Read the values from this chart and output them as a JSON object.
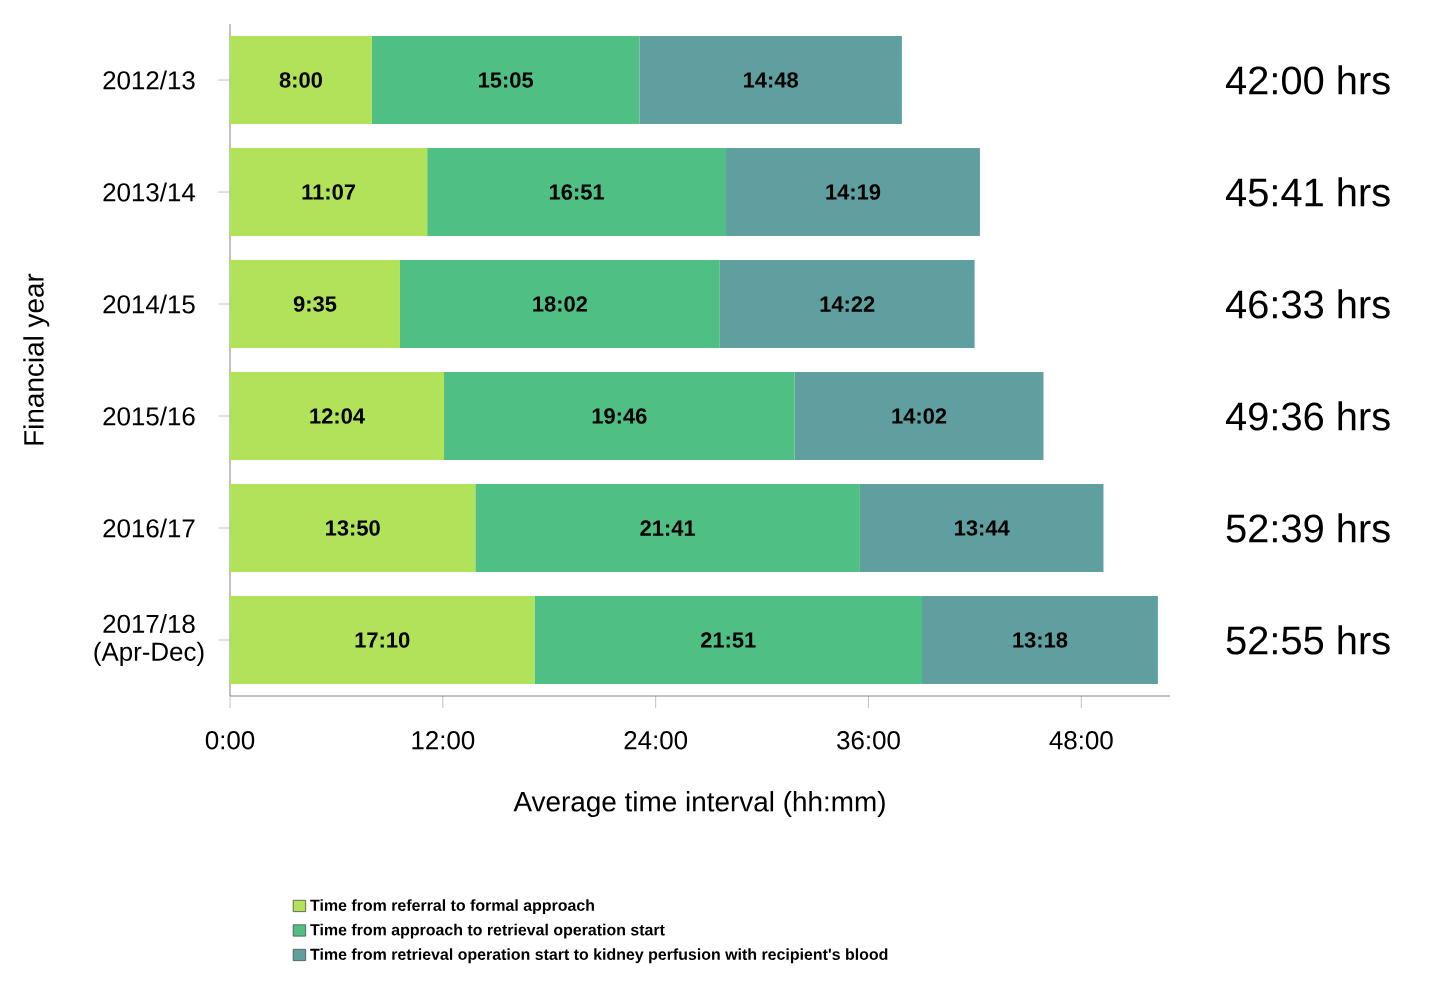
{
  "chart_data": {
    "type": "bar",
    "orientation": "horizontal",
    "stacked": true,
    "xlabel": "Average time interval (hh:mm)",
    "ylabel": "Financial year",
    "categories": [
      "2012/13",
      "2013/14",
      "2014/15",
      "2015/16",
      "2016/17",
      "2017/18 (Apr-Dec)"
    ],
    "series": [
      {
        "name": "Time from referral to formal approach",
        "color": "#b0e25a",
        "values": [
          8.0,
          11.117,
          9.583,
          12.067,
          13.833,
          17.167
        ],
        "value_labels": [
          "8:00",
          "11:07",
          "9:35",
          "12:04",
          "13:50",
          "17:10"
        ]
      },
      {
        "name": "Time from approach to retrieval operation start",
        "color": "#4fbf84",
        "values": [
          15.083,
          16.85,
          18.033,
          19.767,
          21.683,
          21.85
        ],
        "value_labels": [
          "15:05",
          "16:51",
          "18:02",
          "19:46",
          "21:41",
          "21:51"
        ]
      },
      {
        "name": "Time from retrieval operation start to kidney perfusion with recipient's blood",
        "color": "#5f9fa0",
        "values": [
          14.8,
          14.317,
          14.367,
          14.033,
          13.733,
          13.3
        ],
        "value_labels": [
          "14:48",
          "14:19",
          "14:22",
          "14:02",
          "13:44",
          "13:18"
        ]
      }
    ],
    "annotations": [
      "42:00 hrs",
      "45:41 hrs",
      "46:33 hrs",
      "49:36 hrs",
      "52:39 hrs",
      "52:55 hrs"
    ],
    "xlim": [
      0,
      53
    ],
    "xticks": [
      {
        "value": 0,
        "label": "0:00"
      },
      {
        "value": 12,
        "label": "12:00"
      },
      {
        "value": 24,
        "label": "24:00"
      },
      {
        "value": 36,
        "label": "36:00"
      },
      {
        "value": 48,
        "label": "48:00"
      }
    ],
    "legend": "bottom"
  }
}
